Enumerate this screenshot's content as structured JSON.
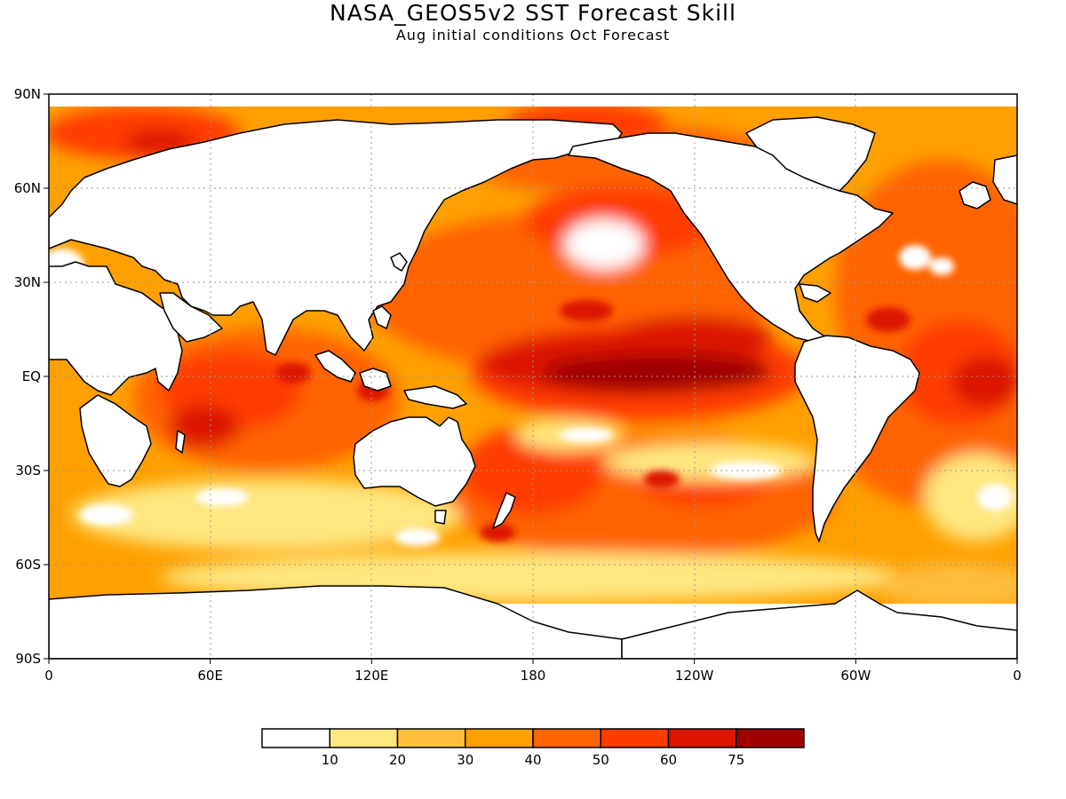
{
  "title": "NASA_GEOS5v2 SST Forecast Skill",
  "subtitle": "Aug initial conditions  Oct Forecast",
  "map": {
    "projection": "cylindrical equidistant",
    "lon_range": [
      0,
      360
    ],
    "lat_range": [
      -90,
      90
    ],
    "grid": "dotted",
    "x_ticks": [
      {
        "lon": 0,
        "label": "0"
      },
      {
        "lon": 60,
        "label": "60E"
      },
      {
        "lon": 120,
        "label": "120E"
      },
      {
        "lon": 180,
        "label": "180"
      },
      {
        "lon": 240,
        "label": "120W"
      },
      {
        "lon": 300,
        "label": "60W"
      },
      {
        "lon": 360,
        "label": "0"
      }
    ],
    "y_ticks": [
      {
        "lat": 90,
        "label": "90N"
      },
      {
        "lat": 60,
        "label": "60N"
      },
      {
        "lat": 30,
        "label": "30N"
      },
      {
        "lat": 0,
        "label": "EQ"
      },
      {
        "lat": -30,
        "label": "30S"
      },
      {
        "lat": -60,
        "label": "60S"
      },
      {
        "lat": -90,
        "label": "90S"
      }
    ],
    "land_color": "#ffffff",
    "coastline_color": "#000000"
  },
  "colorbar": {
    "colors": [
      "#ffffff",
      "#ffe680",
      "#ffbe3c",
      "#ffa000",
      "#ff6400",
      "#ff3c00",
      "#dc1400",
      "#a00000"
    ],
    "labels": [
      "10",
      "20",
      "30",
      "40",
      "50",
      "60",
      "75"
    ]
  }
}
